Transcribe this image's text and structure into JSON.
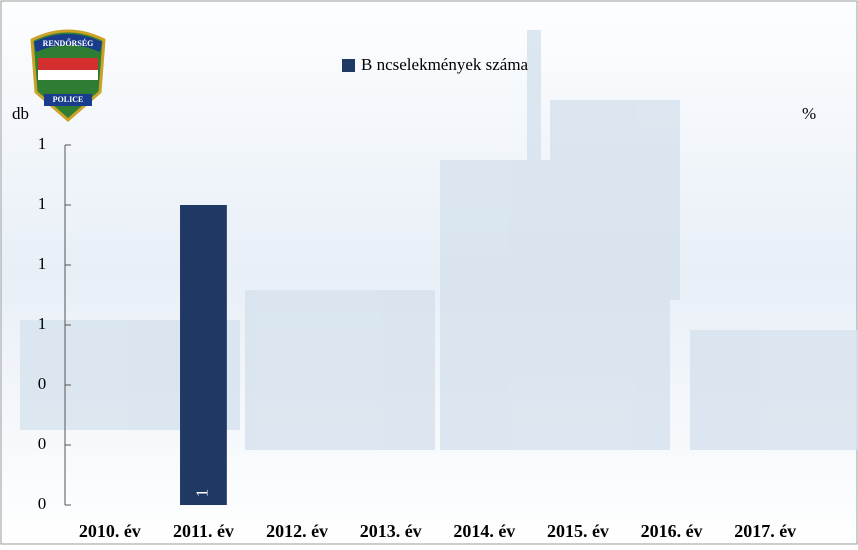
{
  "chart_data": {
    "type": "bar",
    "annotations": [
      "RENDŐRSÉG",
      "POLICE"
    ],
    "ylabel": "db",
    "y2label": "%",
    "categories": [
      "2010. év",
      "2011. év",
      "2012. év",
      "2013. év",
      "2014. év",
      "2015. év",
      "2016. év",
      "2017. év"
    ],
    "series": [
      {
        "name": "B  ncselekmények száma",
        "color": "#1f3864",
        "values": [
          null,
          1,
          null,
          null,
          null,
          null,
          null,
          null
        ]
      }
    ],
    "ylim": [
      0,
      1.2
    ],
    "yticks": [
      0,
      {
        "value": 0.2,
        "label": "0"
      },
      {
        "value": 0.4,
        "label": "0"
      },
      {
        "value": 0.6,
        "label": "1"
      },
      {
        "value": 0.8,
        "label": "1"
      },
      1,
      {
        "value": 1.2,
        "label": "1"
      }
    ],
    "legend": "top"
  }
}
